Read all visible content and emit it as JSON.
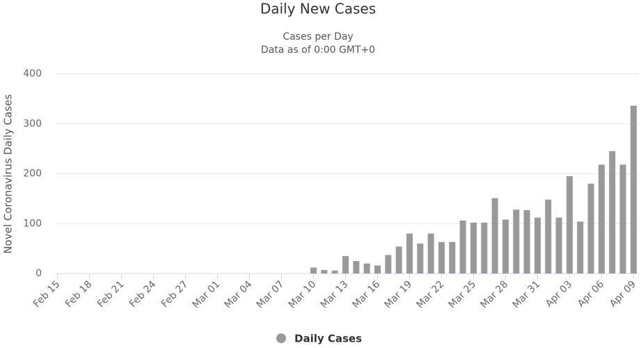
{
  "chart_data": {
    "type": "bar",
    "title": "Daily New Cases",
    "subtitle": [
      "Cases per Day",
      "Data as of 0:00 GMT+0"
    ],
    "y_axis_label": "Novel Coronavirus Daily Cases",
    "categories": [
      "Feb 15",
      null,
      null,
      "Feb 18",
      null,
      null,
      "Feb 21",
      null,
      null,
      "Feb 24",
      null,
      null,
      "Feb 27",
      null,
      null,
      "Mar 01",
      null,
      null,
      "Mar 04",
      null,
      null,
      "Mar 07",
      null,
      null,
      "Mar 10",
      null,
      null,
      "Mar 13",
      null,
      null,
      "Mar 16",
      null,
      null,
      "Mar 19",
      null,
      null,
      "Mar 22",
      null,
      null,
      "Mar 25",
      null,
      null,
      "Mar 28",
      null,
      null,
      "Mar 31",
      null,
      null,
      "Apr 03",
      null,
      null,
      "Apr 06",
      null,
      null,
      "Apr 09"
    ],
    "series": [
      {
        "name": "Daily Cases",
        "color": "#999999",
        "values": [
          0,
          0,
          0,
          0,
          0,
          0,
          0,
          0,
          0,
          0,
          0,
          0,
          0,
          0,
          0,
          0,
          0,
          0,
          0,
          0,
          0,
          0,
          0,
          0,
          12,
          7,
          6,
          35,
          25,
          20,
          16,
          37,
          54,
          80,
          60,
          80,
          63,
          63,
          106,
          102,
          102,
          151,
          108,
          128,
          127,
          112,
          148,
          112,
          195,
          104,
          180,
          218,
          245,
          218,
          336
        ]
      }
    ],
    "ylim": [
      0,
      400
    ],
    "yticks": [
      0,
      100,
      200,
      300,
      400
    ],
    "grid": true,
    "legend": "bottom"
  }
}
